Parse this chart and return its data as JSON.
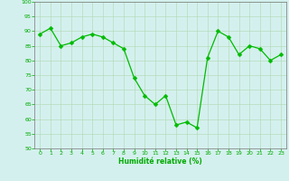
{
  "x": [
    0,
    1,
    2,
    3,
    4,
    5,
    6,
    7,
    8,
    9,
    10,
    11,
    12,
    13,
    14,
    15,
    16,
    17,
    18,
    19,
    20,
    21,
    22,
    23
  ],
  "y": [
    89,
    91,
    85,
    86,
    88,
    89,
    88,
    86,
    84,
    74,
    68,
    65,
    68,
    58,
    59,
    57,
    81,
    90,
    88,
    82,
    85,
    84,
    80,
    82
  ],
  "line_color": "#00bb00",
  "marker_color": "#00bb00",
  "bg_color": "#d4f0ee",
  "grid_color": "#b0d8b0",
  "xlabel": "Humidité relative (%)",
  "xlabel_color": "#00aa00",
  "tick_color": "#00aa00",
  "spine_color": "#777777",
  "ylim": [
    50,
    100
  ],
  "xlim": [
    -0.5,
    23.5
  ],
  "yticks": [
    50,
    55,
    60,
    65,
    70,
    75,
    80,
    85,
    90,
    95,
    100
  ],
  "xticks": [
    0,
    1,
    2,
    3,
    4,
    5,
    6,
    7,
    8,
    9,
    10,
    11,
    12,
    13,
    14,
    15,
    16,
    17,
    18,
    19,
    20,
    21,
    22,
    23
  ]
}
